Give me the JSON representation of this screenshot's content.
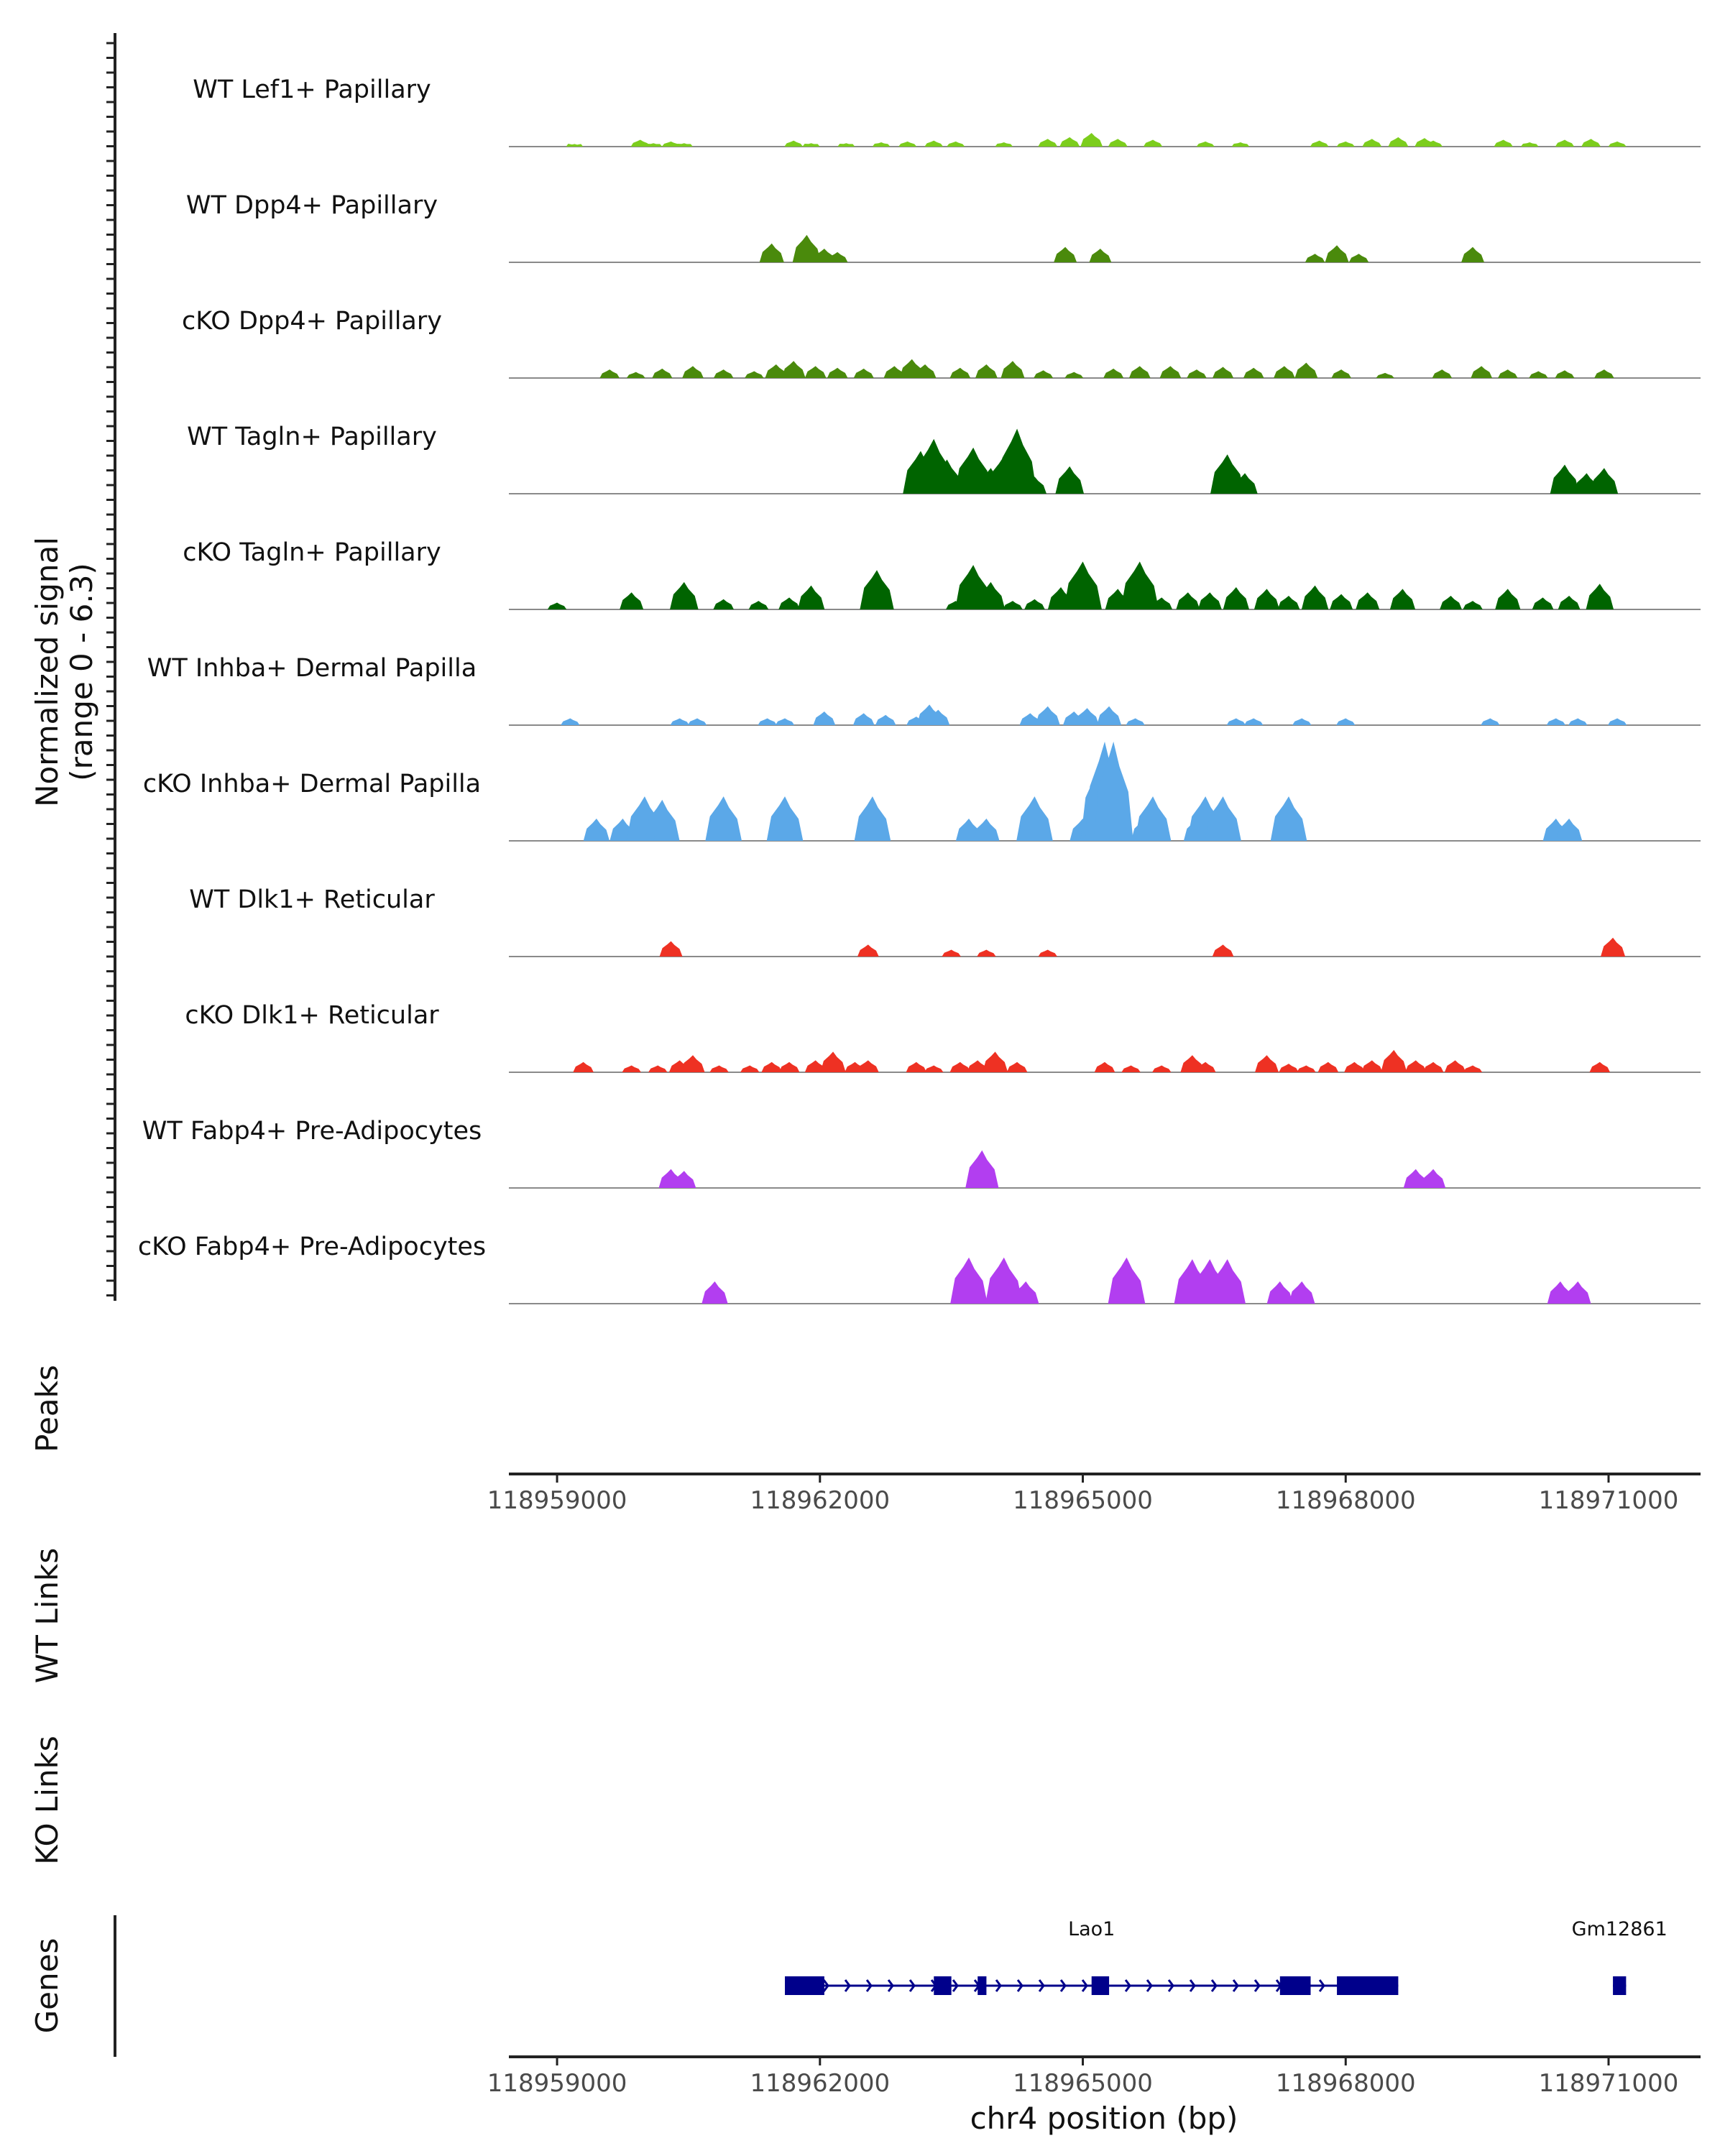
{
  "chart_data": {
    "type": "area",
    "title": "",
    "y_axis_title_line1": "Normalized signal",
    "y_axis_title_line2": "(range 0 - 6.3)",
    "y_range": [
      0,
      6.3
    ],
    "x_range": [
      118958450,
      118972050
    ],
    "xlabel": "chr4 position (bp)",
    "x_ticks": [
      118959000,
      118962000,
      118965000,
      118968000,
      118971000
    ],
    "x_tick_labels": [
      "118959000",
      "118962000",
      "118965000",
      "118968000",
      "118971000"
    ],
    "coverage_tracks": [
      {
        "name": "WT Lef1+ Papillary",
        "color": "#7ccd1d",
        "peaks": [
          [
            118959200,
            0.15
          ],
          [
            118959950,
            0.4
          ],
          [
            118960100,
            0.2
          ],
          [
            118960300,
            0.3
          ],
          [
            118960450,
            0.2
          ],
          [
            118961700,
            0.35
          ],
          [
            118961900,
            0.2
          ],
          [
            118962300,
            0.2
          ],
          [
            118962700,
            0.25
          ],
          [
            118963000,
            0.3
          ],
          [
            118963300,
            0.35
          ],
          [
            118963550,
            0.3
          ],
          [
            118964100,
            0.25
          ],
          [
            118964600,
            0.45
          ],
          [
            118964850,
            0.55
          ],
          [
            118965100,
            0.8
          ],
          [
            118965400,
            0.45
          ],
          [
            118965800,
            0.4
          ],
          [
            118966400,
            0.3
          ],
          [
            118966800,
            0.25
          ],
          [
            118967700,
            0.35
          ],
          [
            118968000,
            0.3
          ],
          [
            118968300,
            0.45
          ],
          [
            118968600,
            0.55
          ],
          [
            118968900,
            0.5
          ],
          [
            118969000,
            0.35
          ],
          [
            118969800,
            0.4
          ],
          [
            118970100,
            0.25
          ],
          [
            118970500,
            0.4
          ],
          [
            118970800,
            0.45
          ],
          [
            118971100,
            0.3
          ]
        ]
      },
      {
        "name": "WT Dpp4+ Papillary",
        "color": "#4a8a0c",
        "peaks": [
          [
            118961450,
            1.1
          ],
          [
            118961850,
            1.6
          ],
          [
            118962050,
            0.8
          ],
          [
            118962200,
            0.6
          ],
          [
            118964800,
            0.9
          ],
          [
            118965200,
            0.8
          ],
          [
            118967650,
            0.5
          ],
          [
            118967900,
            1.0
          ],
          [
            118968150,
            0.5
          ],
          [
            118969450,
            0.9
          ]
        ]
      },
      {
        "name": "cKO Dpp4+ Papillary",
        "color": "#4a8a0c",
        "peaks": [
          [
            118959600,
            0.5
          ],
          [
            118959900,
            0.35
          ],
          [
            118960200,
            0.55
          ],
          [
            118960550,
            0.7
          ],
          [
            118960900,
            0.5
          ],
          [
            118961250,
            0.4
          ],
          [
            118961500,
            0.8
          ],
          [
            118961700,
            1.0
          ],
          [
            118961950,
            0.7
          ],
          [
            118962200,
            0.6
          ],
          [
            118962500,
            0.55
          ],
          [
            118962850,
            0.7
          ],
          [
            118963050,
            1.1
          ],
          [
            118963200,
            0.8
          ],
          [
            118963600,
            0.6
          ],
          [
            118963900,
            0.8
          ],
          [
            118964200,
            1.0
          ],
          [
            118964550,
            0.45
          ],
          [
            118964900,
            0.35
          ],
          [
            118965350,
            0.55
          ],
          [
            118965650,
            0.7
          ],
          [
            118966000,
            0.7
          ],
          [
            118966300,
            0.5
          ],
          [
            118966600,
            0.65
          ],
          [
            118966950,
            0.6
          ],
          [
            118967300,
            0.7
          ],
          [
            118967550,
            0.9
          ],
          [
            118967950,
            0.5
          ],
          [
            118968450,
            0.3
          ],
          [
            118969100,
            0.5
          ],
          [
            118969550,
            0.7
          ],
          [
            118969850,
            0.5
          ],
          [
            118970200,
            0.4
          ],
          [
            118970500,
            0.45
          ],
          [
            118970950,
            0.5
          ]
        ]
      },
      {
        "name": "WT Tagln+ Papillary",
        "color": "#006400",
        "peaks": [
          [
            118963150,
            2.5
          ],
          [
            118963300,
            3.2
          ],
          [
            118963450,
            2.0
          ],
          [
            118963750,
            2.7
          ],
          [
            118963950,
            1.5
          ],
          [
            118964100,
            2.2
          ],
          [
            118964250,
            3.8
          ],
          [
            118964450,
            1.0
          ],
          [
            118964850,
            1.6
          ],
          [
            118966650,
            2.3
          ],
          [
            118966850,
            1.2
          ],
          [
            118970500,
            1.7
          ],
          [
            118970750,
            1.2
          ],
          [
            118970950,
            1.5
          ]
        ]
      },
      {
        "name": "cKO Tagln+ Papillary",
        "color": "#006400",
        "peaks": [
          [
            118959000,
            0.4
          ],
          [
            118959850,
            1.0
          ],
          [
            118960450,
            1.6
          ],
          [
            118960900,
            0.6
          ],
          [
            118961300,
            0.5
          ],
          [
            118961650,
            0.7
          ],
          [
            118961900,
            1.4
          ],
          [
            118962650,
            2.3
          ],
          [
            118963550,
            0.5
          ],
          [
            118963750,
            2.6
          ],
          [
            118963950,
            1.6
          ],
          [
            118964200,
            0.5
          ],
          [
            118964450,
            0.6
          ],
          [
            118964750,
            1.3
          ],
          [
            118965000,
            2.8
          ],
          [
            118965400,
            1.2
          ],
          [
            118965650,
            2.8
          ],
          [
            118965900,
            0.7
          ],
          [
            118966200,
            1.0
          ],
          [
            118966450,
            1.0
          ],
          [
            118966750,
            1.3
          ],
          [
            118967100,
            1.2
          ],
          [
            118967350,
            0.8
          ],
          [
            118967650,
            1.4
          ],
          [
            118967950,
            0.9
          ],
          [
            118968250,
            1.0
          ],
          [
            118968650,
            1.2
          ],
          [
            118969200,
            0.8
          ],
          [
            118969450,
            0.5
          ],
          [
            118969850,
            1.2
          ],
          [
            118970250,
            0.7
          ],
          [
            118970550,
            0.8
          ],
          [
            118970900,
            1.5
          ]
        ]
      },
      {
        "name": "WT Inhba+ Dermal Papilla",
        "color": "#5ba8e8",
        "peaks": [
          [
            118959150,
            0.4
          ],
          [
            118960400,
            0.4
          ],
          [
            118960600,
            0.4
          ],
          [
            118961400,
            0.4
          ],
          [
            118961600,
            0.4
          ],
          [
            118962050,
            0.8
          ],
          [
            118962500,
            0.7
          ],
          [
            118962750,
            0.6
          ],
          [
            118963100,
            0.5
          ],
          [
            118963250,
            1.2
          ],
          [
            118963350,
            0.9
          ],
          [
            118964400,
            0.7
          ],
          [
            118964600,
            1.1
          ],
          [
            118964900,
            0.8
          ],
          [
            118965050,
            1.0
          ],
          [
            118965300,
            1.1
          ],
          [
            118965600,
            0.4
          ],
          [
            118966750,
            0.4
          ],
          [
            118966950,
            0.4
          ],
          [
            118967500,
            0.4
          ],
          [
            118968000,
            0.4
          ],
          [
            118969650,
            0.4
          ],
          [
            118970400,
            0.4
          ],
          [
            118970650,
            0.4
          ],
          [
            118971100,
            0.4
          ]
        ]
      },
      {
        "name": "cKO Inhba+ Dermal Papilla",
        "color": "#5ba8e8",
        "peaks": [
          [
            118959450,
            1.3
          ],
          [
            118959750,
            1.3
          ],
          [
            118960000,
            2.6
          ],
          [
            118960200,
            2.4
          ],
          [
            118960250,
            1.3
          ],
          [
            118960900,
            2.6
          ],
          [
            118961600,
            2.6
          ],
          [
            118962600,
            2.6
          ],
          [
            118963700,
            1.3
          ],
          [
            118963900,
            1.3
          ],
          [
            118964450,
            2.6
          ],
          [
            118965000,
            1.3
          ],
          [
            118965200,
            4.6
          ],
          [
            118965250,
            5.8
          ],
          [
            118965350,
            5.8
          ],
          [
            118965700,
            1.3
          ],
          [
            118965800,
            2.6
          ],
          [
            118966300,
            1.3
          ],
          [
            118966400,
            2.6
          ],
          [
            118966600,
            2.6
          ],
          [
            118967350,
            2.6
          ],
          [
            118970400,
            1.3
          ],
          [
            118970550,
            1.3
          ]
        ]
      },
      {
        "name": "WT Dlk1+ Reticular",
        "color": "#ee3123",
        "peaks": [
          [
            118960300,
            0.9
          ],
          [
            118962550,
            0.7
          ],
          [
            118963500,
            0.4
          ],
          [
            118963900,
            0.4
          ],
          [
            118964600,
            0.4
          ],
          [
            118966600,
            0.7
          ],
          [
            118971050,
            1.1
          ]
        ]
      },
      {
        "name": "cKO Dlk1+ Reticular",
        "color": "#ee3123",
        "peaks": [
          [
            118959300,
            0.6
          ],
          [
            118959850,
            0.4
          ],
          [
            118960150,
            0.4
          ],
          [
            118960400,
            0.7
          ],
          [
            118960550,
            1.0
          ],
          [
            118960850,
            0.4
          ],
          [
            118961200,
            0.4
          ],
          [
            118961450,
            0.6
          ],
          [
            118961650,
            0.6
          ],
          [
            118961950,
            0.7
          ],
          [
            118962150,
            1.2
          ],
          [
            118962400,
            0.6
          ],
          [
            118962550,
            0.7
          ],
          [
            118963100,
            0.6
          ],
          [
            118963300,
            0.4
          ],
          [
            118963600,
            0.6
          ],
          [
            118963800,
            0.7
          ],
          [
            118964000,
            1.2
          ],
          [
            118964250,
            0.6
          ],
          [
            118965250,
            0.6
          ],
          [
            118965550,
            0.4
          ],
          [
            118965900,
            0.4
          ],
          [
            118966250,
            1.0
          ],
          [
            118966400,
            0.6
          ],
          [
            118967100,
            1.0
          ],
          [
            118967350,
            0.5
          ],
          [
            118967550,
            0.4
          ],
          [
            118967800,
            0.6
          ],
          [
            118968100,
            0.6
          ],
          [
            118968300,
            0.7
          ],
          [
            118968550,
            1.3
          ],
          [
            118968800,
            0.7
          ],
          [
            118969000,
            0.6
          ],
          [
            118969250,
            0.7
          ],
          [
            118969450,
            0.4
          ],
          [
            118970900,
            0.6
          ]
        ]
      },
      {
        "name": "WT Fabp4+ Pre-Adipocytes",
        "color": "#b23ef0",
        "peaks": [
          [
            118960300,
            1.1
          ],
          [
            118960450,
            1.0
          ],
          [
            118963850,
            2.2
          ],
          [
            118968800,
            1.1
          ],
          [
            118969000,
            1.1
          ]
        ]
      },
      {
        "name": "cKO Fabp4+ Pre-Adipocytes",
        "color": "#b23ef0",
        "peaks": [
          [
            118960800,
            1.3
          ],
          [
            118963700,
            2.7
          ],
          [
            118964100,
            2.7
          ],
          [
            118964350,
            1.3
          ],
          [
            118965500,
            2.7
          ],
          [
            118966250,
            2.6
          ],
          [
            118966450,
            2.6
          ],
          [
            118966650,
            2.6
          ],
          [
            118967250,
            1.3
          ],
          [
            118967500,
            1.3
          ],
          [
            118970450,
            1.3
          ],
          [
            118970650,
            1.3
          ]
        ]
      }
    ],
    "other_panels": {
      "peaks": "Peaks",
      "wt_links": "WT Links",
      "ko_links": "KO Links",
      "genes": "Genes"
    },
    "genes": [
      {
        "name": "Lao1",
        "start": 118961600,
        "end": 118968600,
        "strand": "+",
        "exons": [
          [
            118961600,
            118962050
          ],
          [
            118963300,
            118963500
          ],
          [
            118963800,
            118963900
          ],
          [
            118965100,
            118965300
          ],
          [
            118967250,
            118967600
          ],
          [
            118967900,
            118968600
          ]
        ]
      },
      {
        "name": "Gm12861",
        "start": 118971050,
        "end": 118971200,
        "strand": "+",
        "exons": [
          [
            118971050,
            118971200
          ]
        ]
      }
    ]
  }
}
